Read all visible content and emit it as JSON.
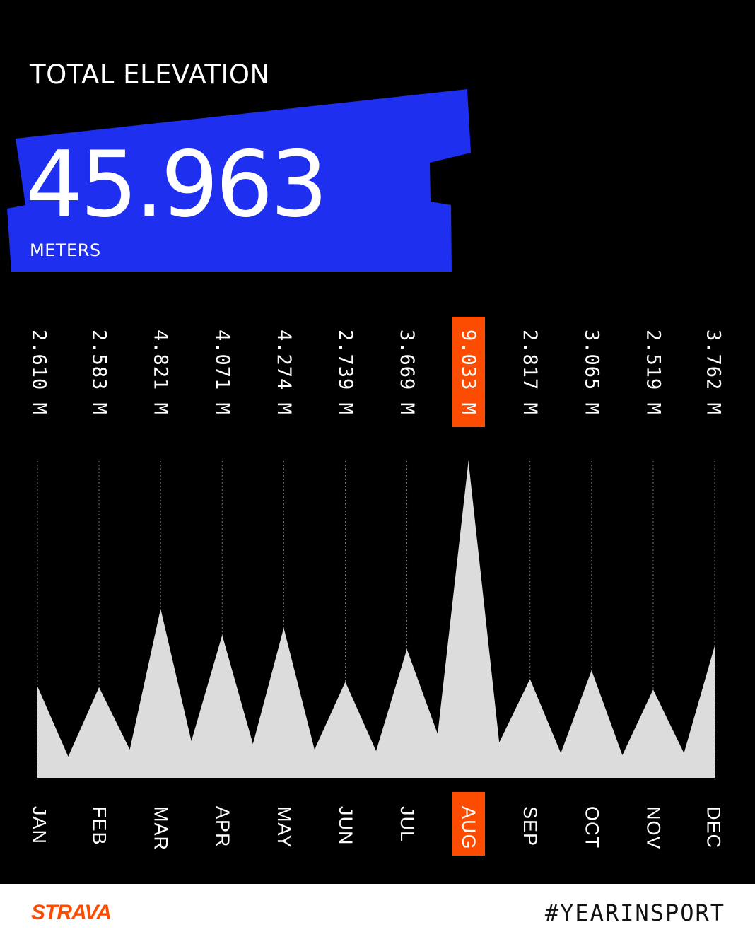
{
  "header": {
    "title": "TOTAL ELEVATION"
  },
  "total": {
    "value": "45.963",
    "unit": "METERS"
  },
  "colors": {
    "accent": "#fc4c02",
    "banner": "#1e2ff0",
    "fill": "#dcdcdc",
    "background": "#000000"
  },
  "chart_data": {
    "type": "area",
    "categories": [
      "JAN",
      "FEB",
      "MAR",
      "APR",
      "MAY",
      "JUN",
      "JUL",
      "AUG",
      "SEP",
      "OCT",
      "NOV",
      "DEC"
    ],
    "values": [
      2610,
      2583,
      4821,
      4071,
      4274,
      2739,
      3669,
      9033,
      2817,
      3065,
      2519,
      3762
    ],
    "value_labels": [
      "2.610 M",
      "2.583 M",
      "4.821 M",
      "4.071 M",
      "4.274 M",
      "2.739 M",
      "3.669 M",
      "9.033 M",
      "2.817 M",
      "3.065 M",
      "2.519 M",
      "3.762 M"
    ],
    "highlight": "AUG",
    "unit": "M"
  },
  "footer": {
    "logo": "STRAVA",
    "hashtag": "#YEARINSPORT"
  }
}
